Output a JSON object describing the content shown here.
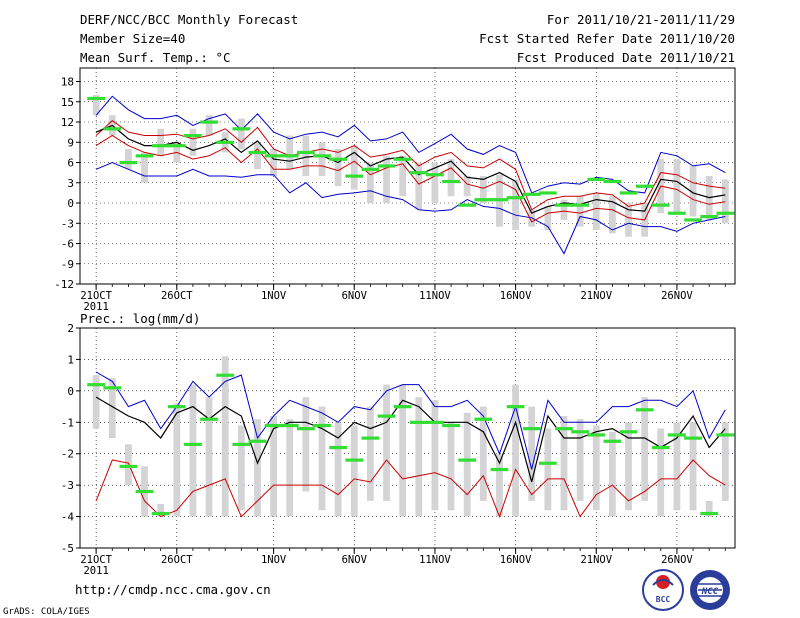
{
  "header": {
    "title": "DERF/NCC/BCC Monthly Forecast",
    "member_size": "Member Size=40",
    "variable": "Mean Surf. Temp.: °C",
    "period": "For 2011/10/21-2011/11/29",
    "started": "Fcst Started Refer Date 2011/10/20",
    "produced": "Fcst Produced Date 2011/10/21"
  },
  "footer": {
    "url": "http://cmdp.ncc.cma.gov.cn",
    "credit": "GrADS: COLA/IGES",
    "logo1_text": "BCC",
    "logo2_text": "NCC"
  },
  "colors": {
    "max": "#0000cc",
    "spread": "#cc0000",
    "mean": "#000000",
    "box": "#d4d4d6",
    "obs": "#33dd33",
    "grid": "#000000"
  },
  "chart_data": [
    {
      "type": "line",
      "id": "temperature",
      "ylabel": "Mean Surf. Temp.: °C",
      "ylim": [
        -12,
        20
      ],
      "yticks": [
        -12,
        -9,
        -6,
        -3,
        0,
        3,
        6,
        9,
        12,
        15,
        18
      ],
      "x_tick_labels": [
        "21OCT",
        "26OCT",
        "1NOV",
        "6NOV",
        "11NOV",
        "16NOV",
        "21NOV",
        "26NOV"
      ],
      "x_tick_days": [
        0,
        5,
        11,
        16,
        21,
        26,
        31,
        36
      ],
      "x_year_label": "2011",
      "days": 40,
      "series": [
        {
          "name": "max",
          "color_key": "max",
          "values": [
            5,
            6,
            5,
            4,
            4,
            4,
            5,
            4,
            4,
            3.8,
            4.2,
            4.2,
            1.5,
            3,
            0.8,
            1.3,
            1.5,
            1.8,
            1,
            0.5,
            -1,
            -1.2,
            -1,
            0.5,
            -0.5,
            -0.8,
            -1.8,
            -2.2,
            -3.5,
            -7.5,
            -2,
            -2.5,
            -4,
            -3,
            -3.5,
            -3.5,
            -4.2,
            -3,
            -2.5,
            -2
          ]
        },
        {
          "name": "upper",
          "color_key": "spread",
          "values": [
            10,
            12.2,
            10.5,
            10,
            10,
            10.2,
            9.5,
            10,
            11,
            9,
            11.2,
            8,
            7,
            7.5,
            8,
            7.5,
            8.5,
            6.8,
            7.2,
            7.8,
            5.5,
            6.8,
            7.5,
            5.5,
            5.2,
            6.5,
            5,
            -1,
            0.5,
            1,
            1,
            1.5,
            1.2,
            -0.5,
            0,
            4.5,
            4.2,
            3,
            2.5,
            2.2,
            1,
            0,
            -1,
            -1.8,
            -1.5,
            -2.5
          ]
        },
        {
          "name": "mean",
          "values": [
            10.5,
            11.5,
            9.5,
            8.5,
            8.5,
            9,
            7.8,
            8.5,
            9.5,
            7.5,
            9.2,
            6.5,
            6.2,
            6.8,
            7,
            6,
            7.5,
            5.5,
            6.5,
            6.8,
            4.2,
            5.2,
            6.2,
            3.8,
            3.5,
            4.5,
            3.2,
            -1.5,
            -0.5,
            0,
            -0.2,
            0.5,
            0.2,
            -1,
            -1.2,
            3.5,
            3.2,
            1.5,
            0.8,
            1.2,
            -0.5,
            -1.5,
            -2.8,
            -2,
            -1.2,
            -2.2
          ]
        },
        {
          "name": "lower",
          "color_key": "spread",
          "values": [
            8.5,
            10,
            8.5,
            7.5,
            7,
            7.5,
            6.5,
            7,
            8.2,
            6,
            8,
            5,
            5,
            5.5,
            5.5,
            4.8,
            6.2,
            4.2,
            5.2,
            5.8,
            2.8,
            4,
            5.2,
            2.8,
            2.2,
            3.2,
            2,
            -2.8,
            -1.5,
            -1.2,
            -1.5,
            -0.8,
            -1,
            -2.2,
            -2.5,
            2.5,
            2,
            0.5,
            -0.2,
            0.2,
            -1.5,
            -2.5,
            -3.8,
            -3,
            -2.2,
            -3.5
          ]
        },
        {
          "name": "min",
          "color_key": "max",
          "values": [
            13,
            15.8,
            13.8,
            12.5,
            12.5,
            13,
            11.5,
            12.5,
            13.2,
            10.8,
            13.2,
            10.5,
            9.5,
            10.2,
            10.5,
            9.8,
            11.5,
            9.2,
            9.5,
            10.5,
            7.5,
            8.8,
            10.2,
            8,
            7.2,
            8.5,
            7.5,
            1.5,
            2.5,
            3,
            2.8,
            3.8,
            3.5,
            1.8,
            1.5,
            7.5,
            7,
            5.5,
            5.8,
            4.5,
            2.5,
            1,
            -1,
            0.5,
            1.8,
            0.8
          ]
        }
      ],
      "obs_values": [
        15.5,
        11,
        6,
        7,
        8.5,
        8.5,
        10,
        12,
        9,
        11,
        7.5,
        7,
        7,
        7.5,
        7,
        6.5,
        4,
        5,
        5.5,
        6.5,
        4.5,
        4.2,
        3.2,
        -0.3,
        0.5,
        0.5,
        0.8,
        1.3,
        1.5,
        -0.3,
        -0.3,
        3.5,
        3.2,
        1.5,
        2.5,
        -0.3,
        -1.5,
        -2.5,
        -2,
        -1.5,
        -2.5
      ],
      "box_top": [
        16,
        13,
        8,
        7.5,
        11,
        9,
        11,
        13,
        10.5,
        12.5,
        9,
        8,
        10,
        10,
        9,
        8,
        8.5,
        6,
        7,
        7,
        6,
        6,
        6.5,
        4,
        4,
        4.2,
        3.5,
        -1,
        -0.5,
        0.5,
        1,
        1.5,
        1,
        0,
        0,
        6.5,
        6.5,
        5.5,
        4,
        3.5,
        3,
        2,
        0.5,
        1,
        1,
        0.5
      ],
      "box_bottom": [
        13,
        10,
        5,
        3,
        7,
        6,
        7,
        10,
        7.5,
        8,
        5,
        4,
        5,
        4,
        4,
        2.5,
        2,
        0,
        0,
        1,
        -1,
        0,
        1,
        1,
        0,
        -3.5,
        -4,
        -3.5,
        -4,
        -2.5,
        -3.5,
        -4,
        -4.5,
        -5,
        -5,
        -1.5,
        -1.5,
        -2,
        -2.5,
        -3,
        -4,
        -4.5,
        -5,
        -5.5,
        -5,
        -6
      ]
    },
    {
      "type": "line",
      "id": "precipitation",
      "ylabel": "Prec.: log(mm/d)",
      "ylim": [
        -5,
        2
      ],
      "yticks": [
        -5,
        -4,
        -3,
        -2,
        -1,
        0,
        1,
        2
      ],
      "x_tick_labels": [
        "21OCT",
        "26OCT",
        "1NOV",
        "6NOV",
        "11NOV",
        "16NOV",
        "21NOV",
        "26NOV"
      ],
      "x_tick_days": [
        0,
        5,
        11,
        16,
        21,
        26,
        31,
        36
      ],
      "x_year_label": "2011",
      "days": 40,
      "series": [
        {
          "name": "max",
          "color_key": "max",
          "values": [
            0.6,
            0.3,
            -0.5,
            -0.3,
            -1.2,
            -0.5,
            0.3,
            -0.2,
            0.3,
            0.5,
            -1.5,
            -0.8,
            -0.3,
            -0.5,
            -0.7,
            -1,
            -0.5,
            -0.6,
            0,
            0.2,
            0.2,
            -0.5,
            -0.5,
            -0.3,
            -0.8,
            -2,
            -0.5,
            -2.5,
            -0.3,
            -1,
            -1,
            -1,
            -0.5,
            -0.5,
            -0.3,
            -0.3,
            -0.5,
            0,
            -1.5,
            -0.6,
            -0.6,
            -4,
            -0.7
          ]
        },
        {
          "name": "mean",
          "values": [
            -0.2,
            -0.5,
            -0.8,
            -1,
            -1.5,
            -0.7,
            -0.5,
            -0.9,
            -0.5,
            -0.8,
            -2.3,
            -1.2,
            -1,
            -1,
            -1.2,
            -1.5,
            -1,
            -1.2,
            -1,
            -0.3,
            -0.5,
            -1,
            -1,
            -1,
            -1.3,
            -2.3,
            -1,
            -2.9,
            -0.8,
            -1.5,
            -1.5,
            -1.3,
            -1.2,
            -1.5,
            -1.5,
            -1.8,
            -1.5,
            -0.8,
            -1.8,
            -1.2,
            -1.2,
            -4,
            -1.5
          ]
        },
        {
          "name": "min",
          "color_key": "spread",
          "values": [
            -3.5,
            -2.2,
            -2.3,
            -3.5,
            -4,
            -3.8,
            -3.2,
            -3,
            -2.8,
            -4,
            -3.5,
            -3,
            -3,
            -3,
            -3,
            -3.3,
            -2.8,
            -2.9,
            -2.2,
            -2.8,
            -2.7,
            -2.6,
            -2.8,
            -3.3,
            -2.7,
            -4,
            -2.5,
            -3.3,
            -2.8,
            -2.8,
            -4,
            -3.3,
            -3,
            -3.5,
            -3.2,
            -2.8,
            -2.8,
            -2.2,
            -2.7,
            -3,
            -3,
            -3.8,
            -3.8
          ]
        }
      ],
      "obs_values": [
        0.2,
        0.1,
        -2.4,
        -3.2,
        -3.9,
        -0.5,
        -1.7,
        -0.9,
        0.5,
        -1.7,
        -1.6,
        -1.1,
        -1.1,
        -1.2,
        -1.1,
        -1.8,
        -2.2,
        -1.5,
        -0.8,
        -0.5,
        -1,
        -1,
        -1.1,
        -2.2,
        -0.9,
        -2.5,
        -0.5,
        -1.2,
        -2.3,
        -1.2,
        -1.3,
        -1.4,
        -1.6,
        -1.3,
        -0.6,
        -1.8,
        -1.4,
        -1.5,
        -3.9,
        -1.4
      ],
      "box_top": [
        0.5,
        0.4,
        -1.7,
        -2.4,
        -3.6,
        -0.4,
        0.2,
        -0.2,
        1.1,
        -1.1,
        -0.9,
        -0.8,
        -0.9,
        -0.2,
        -0.5,
        -1,
        -1.1,
        -0.5,
        0.2,
        0.2,
        -0.2,
        -0.3,
        -1,
        -0.7,
        -0.5,
        -2,
        0.2,
        -0.5,
        -1.2,
        -0.8,
        -0.9,
        -1.1,
        -1.3,
        -1,
        -0.2,
        -1.2,
        -1,
        -1,
        -3.5,
        -1
      ],
      "box_bottom": [
        -1.2,
        -1.5,
        -3,
        -4,
        -4,
        -4,
        -4,
        -4,
        -4,
        -3.8,
        -4,
        -4,
        -4,
        -3.2,
        -3.8,
        -4,
        -4,
        -3.5,
        -3.5,
        -4,
        -4,
        -3.8,
        -3.8,
        -4,
        -3.5,
        -4,
        -4,
        -3.5,
        -3.8,
        -3.8,
        -3.5,
        -3.8,
        -4,
        -3.8,
        -3.5,
        -4,
        -3.8,
        -3.8,
        -4,
        -3.5
      ]
    }
  ]
}
